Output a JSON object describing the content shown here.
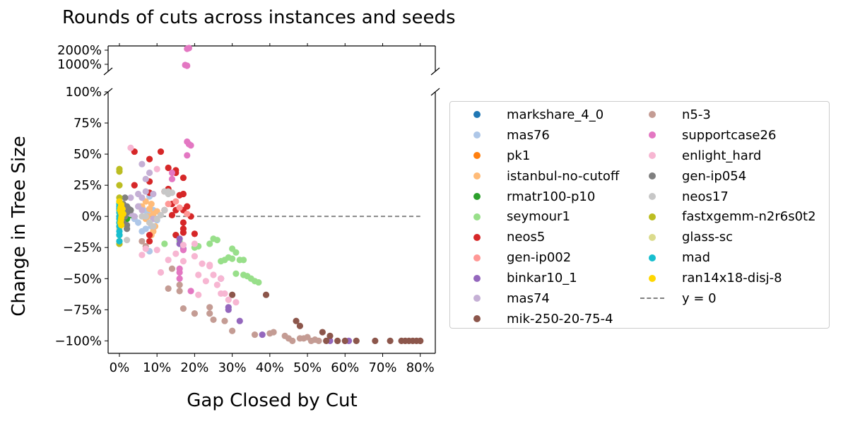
{
  "chart_data": {
    "type": "scatter",
    "title": "Rounds of cuts across instances and seeds",
    "xlabel": "Gap Closed by Cut",
    "ylabel": "Change in Tree Size",
    "xlim": [
      -0.03,
      0.84
    ],
    "ylim_lower": [
      -1.1,
      1.0
    ],
    "ylim_upper": [
      5.0,
      23.0
    ],
    "broken_y_axis": true,
    "x_ticks": [
      0,
      0.1,
      0.2,
      0.3,
      0.4,
      0.5,
      0.6,
      0.7,
      0.8
    ],
    "x_tick_labels": [
      "0%",
      "10%",
      "20%",
      "30%",
      "40%",
      "50%",
      "60%",
      "70%",
      "80%"
    ],
    "y_ticks_lower": [
      -1.0,
      -0.75,
      -0.5,
      -0.25,
      0,
      0.25,
      0.5,
      0.75,
      1.0
    ],
    "y_tick_labels_lower": [
      "−100%",
      "−75%",
      "−50%",
      "−25%",
      "0%",
      "25%",
      "50%",
      "75%",
      "100%"
    ],
    "y_ticks_upper": [
      10,
      20
    ],
    "y_tick_labels_upper": [
      "1000%",
      "2000%"
    ],
    "reference_line": {
      "label": "y = 0",
      "y": 0,
      "style": "dashed",
      "color": "#808080"
    },
    "legend_position": "right",
    "series": [
      {
        "name": "markshare_4_0",
        "color": "#1f77b4",
        "points": []
      },
      {
        "name": "mas76",
        "color": "#aec7e8",
        "points": [
          [
            0.08,
            -0.28
          ],
          [
            0.06,
            -0.12
          ],
          [
            0.07,
            -0.1
          ],
          [
            0.05,
            -0.05
          ],
          [
            0.065,
            0.05
          ],
          [
            0.09,
            -0.02
          ],
          [
            0.08,
            0.16
          ],
          [
            0.04,
            -0.02
          ],
          [
            0.09,
            0.05
          ],
          [
            0.075,
            0.02
          ],
          [
            0.055,
            0.08
          ],
          [
            0.1,
            -0.03
          ],
          [
            0.085,
            -0.08
          ]
        ]
      },
      {
        "name": "pk1",
        "color": "#ff7f0e",
        "points": []
      },
      {
        "name": "istanbul-no-cutoff",
        "color": "#ffbb78",
        "points": [
          [
            0.08,
            -0.05
          ],
          [
            0.09,
            0.02
          ],
          [
            0.085,
            0.1
          ],
          [
            0.07,
            -0.02
          ],
          [
            0.095,
            -0.08
          ],
          [
            0.08,
            0.06
          ],
          [
            0.075,
            0.0
          ],
          [
            0.09,
            -0.12
          ],
          [
            0.06,
            0.08
          ],
          [
            0.1,
            0.04
          ],
          [
            0.085,
            -0.15
          ],
          [
            0.07,
            0.12
          ]
        ]
      },
      {
        "name": "rmatr100-p10",
        "color": "#2ca02c",
        "points": [
          [
            0.02,
            0.0
          ],
          [
            0.03,
            0.01
          ],
          [
            0.015,
            -0.01
          ],
          [
            0.025,
            0.02
          ],
          [
            0.02,
            -0.02
          ]
        ]
      },
      {
        "name": "seymour1",
        "color": "#98df8a",
        "points": [
          [
            0.12,
            -0.22
          ],
          [
            0.15,
            -0.15
          ],
          [
            0.16,
            -0.2
          ],
          [
            0.2,
            -0.25
          ],
          [
            0.21,
            -0.24
          ],
          [
            0.24,
            -0.22
          ],
          [
            0.26,
            -0.19
          ],
          [
            0.27,
            -0.36
          ],
          [
            0.28,
            -0.35
          ],
          [
            0.29,
            -0.33
          ],
          [
            0.3,
            -0.26
          ],
          [
            0.31,
            -0.29
          ],
          [
            0.31,
            -0.46
          ],
          [
            0.32,
            -0.35
          ],
          [
            0.33,
            -0.35
          ],
          [
            0.33,
            -0.47
          ],
          [
            0.34,
            -0.48
          ],
          [
            0.35,
            -0.5
          ],
          [
            0.36,
            -0.52
          ],
          [
            0.37,
            -0.53
          ],
          [
            0.3,
            -0.34
          ],
          [
            0.25,
            -0.18
          ]
        ]
      },
      {
        "name": "neos5",
        "color": "#d62728",
        "points": [
          [
            0.04,
            0.52
          ],
          [
            0.11,
            0.52
          ],
          [
            0.08,
            0.46
          ],
          [
            0.15,
            0.37
          ],
          [
            0.13,
            0.39
          ],
          [
            0.17,
            0.31
          ],
          [
            0.04,
            0.25
          ],
          [
            0.08,
            0.28
          ],
          [
            0.12,
            0.2
          ],
          [
            0.13,
            0.22
          ],
          [
            0.16,
            0.17
          ],
          [
            0.17,
            0.18
          ],
          [
            0.08,
            0.19
          ],
          [
            0.14,
            0.1
          ],
          [
            0.18,
            0.08
          ],
          [
            0.15,
            0.05
          ],
          [
            0.17,
            0.05
          ],
          [
            0.17,
            -0.05
          ],
          [
            0.17,
            -0.1
          ],
          [
            0.17,
            -0.13
          ],
          [
            0.2,
            -0.14
          ],
          [
            0.19,
            0.0
          ],
          [
            0.08,
            -0.15
          ],
          [
            0.08,
            -0.2
          ],
          [
            0.15,
            -0.15
          ],
          [
            0.12,
            0.05
          ],
          [
            0.14,
            0.01
          ],
          [
            0.15,
            0.35
          ]
        ]
      },
      {
        "name": "gen-ip002",
        "color": "#ff9896",
        "points": [
          [
            0.13,
            0.1
          ],
          [
            0.15,
            0.12
          ],
          [
            0.16,
            0.07
          ],
          [
            0.18,
            0.02
          ]
        ]
      },
      {
        "name": "binkar10_1",
        "color": "#9467bd",
        "points": [
          [
            0.16,
            -0.18
          ],
          [
            0.16,
            -0.22
          ],
          [
            0.17,
            -0.26
          ],
          [
            0.29,
            -0.73
          ],
          [
            0.29,
            -0.75
          ],
          [
            0.32,
            -0.84
          ],
          [
            0.38,
            -0.95
          ],
          [
            0.56,
            -1.0
          ],
          [
            0.6,
            -1.0
          ],
          [
            0.61,
            -1.0
          ],
          [
            0.27,
            -0.5
          ]
        ]
      },
      {
        "name": "mas74",
        "color": "#c5b0d5",
        "points": [
          [
            0.06,
            0.42
          ],
          [
            0.07,
            0.3
          ],
          [
            0.08,
            0.35
          ],
          [
            0.05,
            0.18
          ],
          [
            0.07,
            0.2
          ],
          [
            0.03,
            0.15
          ],
          [
            0.06,
            0.15
          ],
          [
            0.09,
            0.18
          ],
          [
            0.05,
            0.08
          ],
          [
            0.04,
            0.0
          ],
          [
            0.06,
            0.05
          ],
          [
            0.09,
            -0.02
          ],
          [
            0.03,
            0.02
          ]
        ]
      },
      {
        "name": "mik-250-20-75-4",
        "color": "#8c564b",
        "points": [
          [
            0.3,
            -0.63
          ],
          [
            0.39,
            -0.63
          ],
          [
            0.47,
            -0.84
          ],
          [
            0.48,
            -0.88
          ],
          [
            0.54,
            -0.93
          ],
          [
            0.56,
            -0.96
          ],
          [
            0.55,
            -1.0
          ],
          [
            0.58,
            -1.0
          ],
          [
            0.6,
            -1.0
          ],
          [
            0.63,
            -1.0
          ],
          [
            0.68,
            -1.0
          ],
          [
            0.72,
            -1.0
          ],
          [
            0.75,
            -1.0
          ],
          [
            0.76,
            -1.0
          ],
          [
            0.77,
            -1.0
          ],
          [
            0.78,
            -1.0
          ],
          [
            0.79,
            -1.0
          ],
          [
            0.8,
            -1.0
          ],
          [
            0.8,
            -1.0
          ]
        ]
      },
      {
        "name": "n5-3",
        "color": "#c49c94",
        "points": [
          [
            0.16,
            -0.6
          ],
          [
            0.13,
            -0.58
          ],
          [
            0.17,
            -0.74
          ],
          [
            0.2,
            -0.78
          ],
          [
            0.24,
            -0.78
          ],
          [
            0.24,
            -0.73
          ],
          [
            0.25,
            -0.83
          ],
          [
            0.28,
            -0.84
          ],
          [
            0.3,
            -0.92
          ],
          [
            0.36,
            -0.95
          ],
          [
            0.4,
            -0.94
          ],
          [
            0.41,
            -0.93
          ],
          [
            0.44,
            -0.96
          ],
          [
            0.45,
            -0.98
          ],
          [
            0.46,
            -1.0
          ],
          [
            0.48,
            -0.98
          ],
          [
            0.49,
            -0.98
          ],
          [
            0.5,
            -0.97
          ],
          [
            0.51,
            -1.0
          ],
          [
            0.52,
            -0.99
          ],
          [
            0.53,
            -1.0
          ],
          [
            0.14,
            -0.42
          ],
          [
            0.16,
            -0.55
          ],
          [
            0.06,
            -0.2
          ],
          [
            0.07,
            -0.24
          ]
        ]
      },
      {
        "name": "supportcase26",
        "color": "#e377c2",
        "points": [
          [
            0.18,
            0.6
          ],
          [
            0.185,
            0.58
          ],
          [
            0.19,
            0.57
          ],
          [
            0.18,
            0.49
          ],
          [
            0.14,
            0.35
          ],
          [
            0.14,
            0.3
          ],
          [
            0.16,
            -0.42
          ],
          [
            0.16,
            -0.45
          ],
          [
            0.16,
            -0.5
          ],
          [
            0.19,
            -0.6
          ],
          [
            0.17,
            -0.27
          ],
          [
            0.18,
            21.0
          ],
          [
            0.185,
            21.5
          ],
          [
            0.175,
            9.5
          ],
          [
            0.18,
            9.0
          ]
        ]
      },
      {
        "name": "enlight_hard",
        "color": "#f7b6d2",
        "points": [
          [
            0.03,
            0.55
          ],
          [
            0.1,
            0.38
          ],
          [
            0.07,
            -0.26
          ],
          [
            0.1,
            -0.27
          ],
          [
            0.11,
            -0.45
          ],
          [
            0.13,
            -0.35
          ],
          [
            0.15,
            -0.3
          ],
          [
            0.17,
            -0.36
          ],
          [
            0.17,
            -0.23
          ],
          [
            0.2,
            -0.22
          ],
          [
            0.2,
            -0.32
          ],
          [
            0.21,
            -0.47
          ],
          [
            0.22,
            -0.38
          ],
          [
            0.23,
            -0.52
          ],
          [
            0.24,
            -0.39
          ],
          [
            0.25,
            -0.47
          ],
          [
            0.26,
            -0.55
          ],
          [
            0.27,
            -0.62
          ],
          [
            0.28,
            -0.62
          ],
          [
            0.29,
            -0.67
          ],
          [
            0.27,
            -0.5
          ],
          [
            0.31,
            -0.69
          ],
          [
            0.21,
            -0.63
          ],
          [
            0.24,
            -0.4
          ],
          [
            0.06,
            -0.31
          ]
        ]
      },
      {
        "name": "gen-ip054",
        "color": "#7f7f7f",
        "points": [
          [
            0.02,
            0.08
          ],
          [
            0.025,
            0.06
          ],
          [
            0.01,
            -0.05
          ],
          [
            0.02,
            -0.1
          ],
          [
            0.015,
            0.15
          ],
          [
            0.03,
            0.05
          ],
          [
            0.02,
            -0.07
          ],
          [
            0.015,
            0.0
          ],
          [
            0.01,
            0.1
          ],
          [
            0.02,
            0.03
          ]
        ]
      },
      {
        "name": "neos17",
        "color": "#c7c7c7",
        "points": [
          [
            0.12,
            0.2
          ],
          [
            0.13,
            0.2
          ],
          [
            0.14,
            0.19
          ],
          [
            0.1,
            -0.02
          ],
          [
            0.11,
            0.01
          ],
          [
            0.12,
            0.05
          ],
          [
            0.13,
            0.18
          ],
          [
            0.07,
            0.0
          ],
          [
            0.08,
            -0.05
          ],
          [
            0.06,
            0.0
          ],
          [
            0.09,
            -0.08
          ],
          [
            0.02,
            -0.19
          ]
        ]
      },
      {
        "name": "fastxgemm-n2r6s0t2",
        "color": "#bcbd22",
        "points": [
          [
            0.0,
            0.38
          ],
          [
            0.0,
            0.36
          ],
          [
            0.0,
            0.25
          ],
          [
            0.0,
            0.15
          ],
          [
            0.0,
            0.05
          ],
          [
            0.0,
            -0.05
          ],
          [
            0.0,
            -0.15
          ],
          [
            0.0,
            -0.2
          ],
          [
            0.0,
            -0.22
          ],
          [
            0.005,
            0.1
          ]
        ]
      },
      {
        "name": "glass-sc",
        "color": "#dbdb8d",
        "points": [
          [
            0.0,
            0.12
          ],
          [
            0.0,
            0.07
          ],
          [
            0.0,
            -0.05
          ],
          [
            0.005,
            0.02
          ],
          [
            0.0,
            -0.1
          ]
        ]
      },
      {
        "name": "mad",
        "color": "#17becf",
        "points": [
          [
            0.0,
            0.1
          ],
          [
            0.0,
            0.06
          ],
          [
            0.0,
            0.03
          ],
          [
            0.0,
            0.0
          ],
          [
            0.0,
            -0.02
          ],
          [
            0.0,
            -0.05
          ],
          [
            0.0,
            -0.08
          ],
          [
            0.0,
            -0.12
          ],
          [
            0.0,
            -0.15
          ],
          [
            0.0,
            -0.2
          ],
          [
            0.0,
            0.12
          ],
          [
            0.0,
            0.08
          ]
        ]
      },
      {
        "name": "ran14x18-disj-8",
        "color": "#ffd700",
        "points": [
          [
            0.0,
            0.12
          ],
          [
            0.005,
            0.09
          ],
          [
            0.003,
            0.07
          ],
          [
            0.002,
            0.05
          ],
          [
            0.004,
            0.03
          ],
          [
            0.006,
            0.01
          ],
          [
            0.005,
            -0.01
          ],
          [
            0.004,
            -0.03
          ],
          [
            0.003,
            -0.05
          ],
          [
            0.005,
            -0.07
          ],
          [
            0.01,
            0.02
          ],
          [
            0.008,
            0.06
          ]
        ]
      }
    ]
  }
}
